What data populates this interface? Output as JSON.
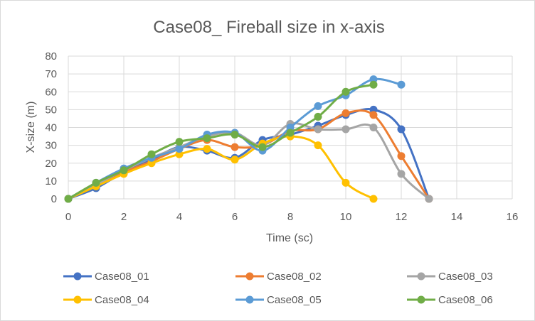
{
  "chart_data": {
    "type": "line",
    "title": "Case08_ Fireball size in x-axis",
    "xlabel": "Time (sc)",
    "ylabel": "X-size (m)",
    "xlim": [
      0,
      16
    ],
    "ylim": [
      0,
      80
    ],
    "xticks": [
      0,
      2,
      4,
      6,
      8,
      10,
      12,
      14,
      16
    ],
    "yticks": [
      0,
      10,
      20,
      30,
      40,
      50,
      60,
      70,
      80
    ],
    "grid": true,
    "legend_position": "bottom",
    "smooth": true,
    "series": [
      {
        "name": "Case08_01",
        "color": "#4472C4",
        "x": [
          0,
          1,
          2,
          3,
          4,
          5,
          6,
          7,
          8,
          9,
          10,
          11,
          12,
          13
        ],
        "y": [
          0,
          6,
          15,
          22,
          29,
          27,
          23,
          33,
          36,
          41,
          47,
          50,
          39,
          0
        ]
      },
      {
        "name": "Case08_02",
        "color": "#ED7D31",
        "x": [
          0,
          1,
          2,
          3,
          4,
          5,
          6,
          7,
          8,
          9,
          10,
          11,
          12,
          13
        ],
        "y": [
          0,
          8,
          15,
          21,
          28,
          33,
          29,
          30,
          38,
          39,
          48,
          47,
          24,
          0
        ]
      },
      {
        "name": "Case08_03",
        "color": "#A5A5A5",
        "x": [
          0,
          1,
          2,
          3,
          4,
          5,
          6,
          7,
          8,
          9,
          10,
          11,
          12,
          13
        ],
        "y": [
          0,
          8,
          16,
          23,
          29,
          35,
          37,
          30,
          42,
          39,
          39,
          40,
          14,
          0
        ]
      },
      {
        "name": "Case08_04",
        "color": "#FFC000",
        "x": [
          0,
          1,
          2,
          3,
          4,
          5,
          6,
          7,
          8,
          9,
          10,
          11
        ],
        "y": [
          0,
          7,
          14,
          20,
          25,
          28,
          22,
          31,
          35,
          30,
          9,
          0
        ]
      },
      {
        "name": "Case08_05",
        "color": "#5B9BD5",
        "x": [
          0,
          1,
          2,
          3,
          4,
          5,
          6,
          7,
          8,
          9,
          10,
          11,
          12
        ],
        "y": [
          0,
          9,
          17,
          23,
          28,
          36,
          37,
          27,
          40,
          52,
          58,
          67,
          64
        ]
      },
      {
        "name": "Case08_06",
        "color": "#70AD47",
        "x": [
          0,
          1,
          2,
          3,
          4,
          5,
          6,
          7,
          8,
          9,
          10,
          11
        ],
        "y": [
          0,
          9,
          16,
          25,
          32,
          34,
          36,
          29,
          37,
          46,
          60,
          64
        ]
      }
    ]
  }
}
